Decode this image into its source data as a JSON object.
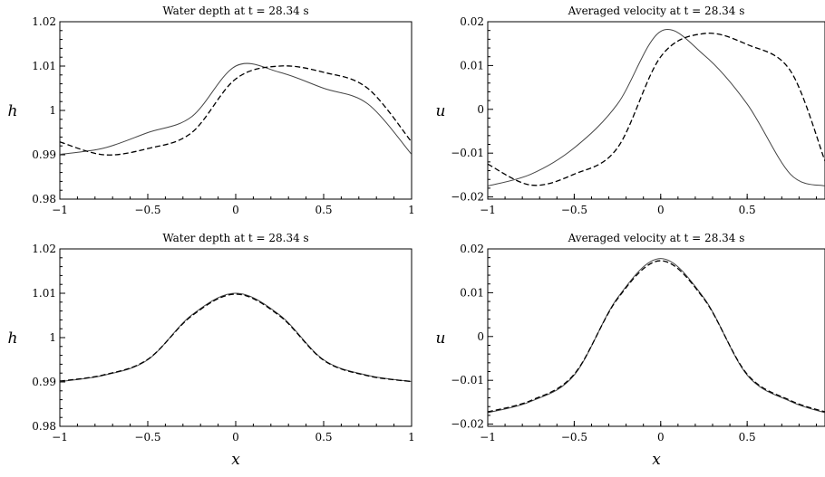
{
  "chart_data": [
    {
      "type": "line",
      "title": "Water depth at t = 28.34 s",
      "ylabel": "h",
      "xlabel": "",
      "xlim": [
        -1,
        1
      ],
      "ylim": [
        0.98,
        1.02
      ],
      "xticks": [
        -1,
        -0.5,
        0,
        0.5,
        1
      ],
      "xtick_labels": [
        "−1",
        "−0.5",
        "0",
        "0.5",
        "1"
      ],
      "yticks": [
        0.98,
        0.99,
        1.0,
        1.01,
        1.02
      ],
      "ytick_labels": [
        "0.98",
        "0.99",
        "1",
        "1.01",
        "1.02"
      ],
      "grid": false,
      "series": [
        {
          "style": "solid",
          "color": "#444444",
          "x": [
            -1,
            -0.75,
            -0.5,
            -0.25,
            0,
            0.25,
            0.5,
            0.75,
            1
          ],
          "y": [
            0.9901,
            0.9915,
            0.995,
            0.9986,
            1.01,
            1.0086,
            1.005,
            1.0015,
            0.9901
          ]
        },
        {
          "style": "dashed",
          "color": "#000000",
          "x": [
            -1,
            -0.75,
            -0.5,
            -0.25,
            0,
            0.25,
            0.5,
            0.75,
            1
          ],
          "y": [
            0.9929,
            0.99,
            0.9914,
            0.995,
            1.0071,
            1.01,
            1.0086,
            1.005,
            0.9929
          ]
        }
      ]
    },
    {
      "type": "line",
      "title": "Averaged velocity at t = 28.34 s",
      "ylabel": "u",
      "xlabel": "",
      "xlim": [
        -1,
        0.95
      ],
      "ylim": [
        -0.0205,
        0.02
      ],
      "xticks": [
        -1,
        -0.5,
        0,
        0.5
      ],
      "xtick_labels": [
        "−1",
        "−0.5",
        "0",
        "0.5"
      ],
      "yticks": [
        -0.02,
        -0.01,
        0,
        0.01,
        0.02
      ],
      "ytick_labels": [
        "−0.02",
        "−0.01",
        "0",
        "0.01",
        "0.02"
      ],
      "grid": false,
      "series": [
        {
          "style": "solid",
          "color": "#444444",
          "x": [
            -1,
            -0.75,
            -0.5,
            -0.25,
            0,
            0.25,
            0.5,
            0.75,
            0.95
          ],
          "y": [
            -0.0175,
            -0.0148,
            -0.0088,
            0.0012,
            0.0178,
            0.0124,
            0.0012,
            -0.0148,
            -0.0175
          ]
        },
        {
          "style": "dashed",
          "color": "#000000",
          "x": [
            -1,
            -0.75,
            -0.5,
            -0.25,
            0,
            0.25,
            0.5,
            0.75,
            0.95
          ],
          "y": [
            -0.0125,
            -0.0173,
            -0.0148,
            -0.0088,
            0.012,
            0.0173,
            0.0148,
            0.0088,
            -0.0118
          ]
        }
      ]
    },
    {
      "type": "line",
      "title": "Water depth at t = 28.34 s",
      "ylabel": "h",
      "xlabel": "x",
      "xlim": [
        -1,
        1
      ],
      "ylim": [
        0.98,
        1.02
      ],
      "xticks": [
        -1,
        -0.5,
        0,
        0.5,
        1
      ],
      "xtick_labels": [
        "−1",
        "−0.5",
        "0",
        "0.5",
        "1"
      ],
      "yticks": [
        0.98,
        0.99,
        1.0,
        1.01,
        1.02
      ],
      "ytick_labels": [
        "0.98",
        "0.99",
        "1",
        "1.01",
        "1.02"
      ],
      "grid": false,
      "series": [
        {
          "style": "solid",
          "color": "#444444",
          "x": [
            -1,
            -0.75,
            -0.5,
            -0.25,
            0,
            0.25,
            0.5,
            0.75,
            1
          ],
          "y": [
            0.9901,
            0.9915,
            0.995,
            1.0051,
            1.01,
            1.0051,
            0.995,
            0.9915,
            0.9901
          ]
        },
        {
          "style": "dashed",
          "color": "#000000",
          "x": [
            -1,
            -0.75,
            -0.5,
            -0.25,
            0,
            0.25,
            0.5,
            0.75,
            1
          ],
          "y": [
            0.9902,
            0.9916,
            0.9951,
            1.0049,
            1.0098,
            1.0049,
            0.9949,
            0.9914,
            0.9901
          ]
        }
      ]
    },
    {
      "type": "line",
      "title": "Averaged velocity at t = 28.34 s",
      "ylabel": "u",
      "xlabel": "x",
      "xlim": [
        -1,
        0.95
      ],
      "ylim": [
        -0.0205,
        0.02
      ],
      "xticks": [
        -1,
        -0.5,
        0,
        0.5
      ],
      "xtick_labels": [
        "−1",
        "−0.5",
        "0",
        "0.5"
      ],
      "yticks": [
        -0.02,
        -0.01,
        0,
        0.01,
        0.02
      ],
      "ytick_labels": [
        "−0.02",
        "−0.01",
        "0",
        "0.01",
        "0.02"
      ],
      "grid": false,
      "series": [
        {
          "style": "solid",
          "color": "#444444",
          "x": [
            -1,
            -0.75,
            -0.5,
            -0.25,
            0,
            0.25,
            0.5,
            0.75,
            0.95
          ],
          "y": [
            -0.0174,
            -0.0148,
            -0.0088,
            0.0088,
            0.0178,
            0.0088,
            -0.0088,
            -0.0148,
            -0.0174
          ]
        },
        {
          "style": "dashed",
          "color": "#000000",
          "x": [
            -1,
            -0.75,
            -0.5,
            -0.25,
            0,
            0.25,
            0.5,
            0.75,
            0.95
          ],
          "y": [
            -0.0172,
            -0.0146,
            -0.0086,
            0.0086,
            0.0173,
            0.0086,
            -0.0086,
            -0.0146,
            -0.0172
          ]
        }
      ]
    }
  ]
}
